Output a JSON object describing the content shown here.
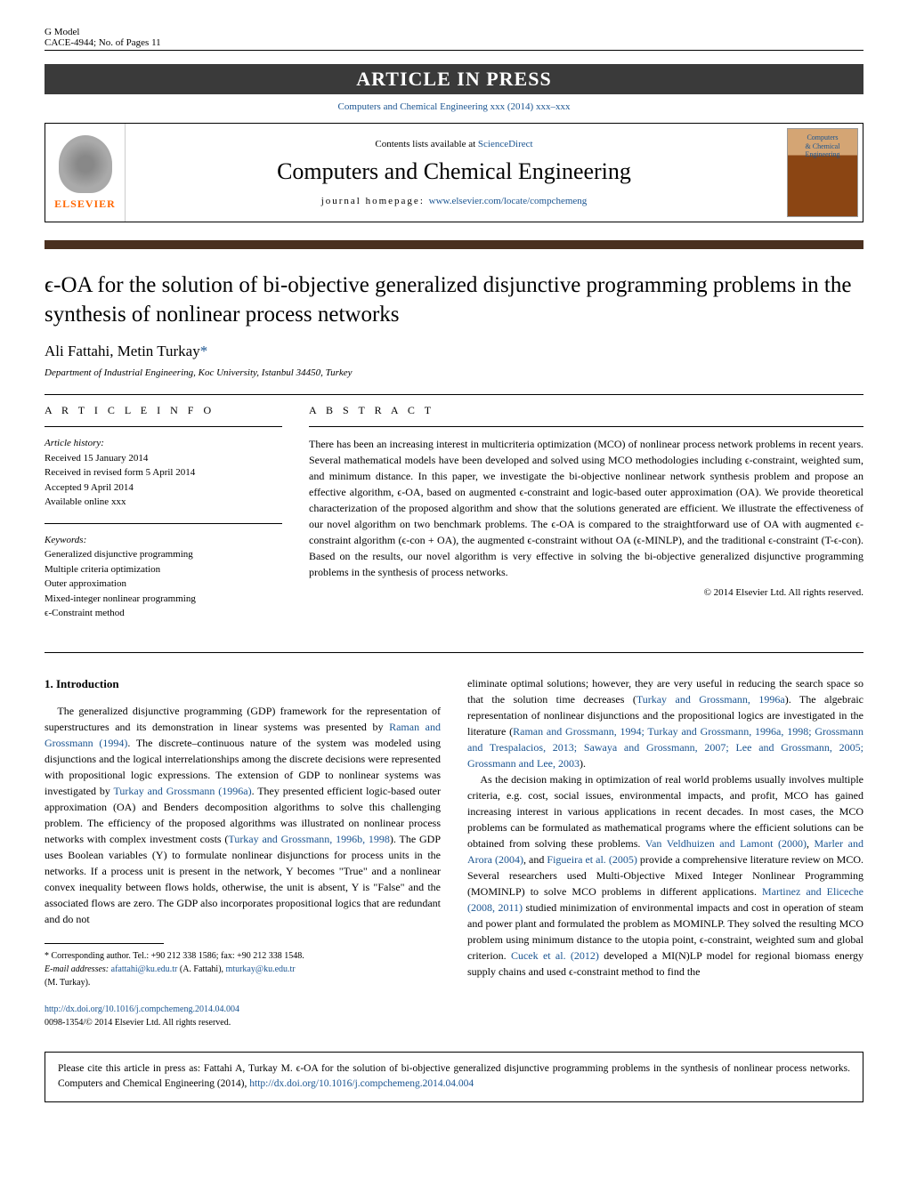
{
  "header": {
    "gmodel": "G Model",
    "cace": "CACE-4944;   No. of Pages 11",
    "banner": "ARTICLE IN PRESS",
    "journal_ref": "Computers and Chemical Engineering xxx (2014) xxx–xxx"
  },
  "journal_box": {
    "elsevier": "ELSEVIER",
    "contents": "Contents lists available at ",
    "sciencedirect": "ScienceDirect",
    "title": "Computers and Chemical Engineering",
    "homepage_label": "journal homepage: ",
    "homepage_url": "www.elsevier.com/locate/compchemeng",
    "cover_line1": "Computers",
    "cover_line2": "& Chemical",
    "cover_line3": "Engineering"
  },
  "article": {
    "title": "ϵ-OA for the solution of bi-objective generalized disjunctive programming problems in the synthesis of nonlinear process networks",
    "authors": "Ali Fattahi, Metin Turkay",
    "corr_mark": "*",
    "affiliation": "Department of Industrial Engineering, Koc University, Istanbul 34450, Turkey"
  },
  "info": {
    "heading": "A R T I C L E   I N F O",
    "history_label": "Article history:",
    "received": "Received 15 January 2014",
    "revised": "Received in revised form 5 April 2014",
    "accepted": "Accepted 9 April 2014",
    "online": "Available online xxx",
    "keywords_label": "Keywords:",
    "kw1": "Generalized disjunctive programming",
    "kw2": "Multiple criteria optimization",
    "kw3": "Outer approximation",
    "kw4": "Mixed-integer nonlinear programming",
    "kw5": "ϵ-Constraint method"
  },
  "abstract": {
    "heading": "A B S T R A C T",
    "text": "There has been an increasing interest in multicriteria optimization (MCO) of nonlinear process network problems in recent years. Several mathematical models have been developed and solved using MCO methodologies including ϵ-constraint, weighted sum, and minimum distance. In this paper, we investigate the bi-objective nonlinear network synthesis problem and propose an effective algorithm, ϵ-OA, based on augmented ϵ-constraint and logic-based outer approximation (OA). We provide theoretical characterization of the proposed algorithm and show that the solutions generated are efficient. We illustrate the effectiveness of our novel algorithm on two benchmark problems. The ϵ-OA is compared to the straightforward use of OA with augmented ϵ-constraint algorithm (ϵ-con + OA), the augmented ϵ-constraint without OA (ϵ-MINLP), and the traditional ϵ-constraint (T-ϵ-con). Based on the results, our novel algorithm is very effective in solving the bi-objective generalized disjunctive programming problems in the synthesis of process networks.",
    "copyright": "© 2014 Elsevier Ltd. All rights reserved."
  },
  "body": {
    "section1": "1.  Introduction",
    "col1_p1": "The generalized disjunctive programming (GDP) framework for the representation of superstructures and its demonstration in linear systems was presented by ",
    "col1_ref1": "Raman and Grossmann (1994)",
    "col1_p1b": ". The discrete–continuous nature of the system was modeled using disjunctions and the logical interrelationships among the discrete decisions were represented with propositional logic expressions. The extension of GDP to nonlinear systems was investigated by ",
    "col1_ref2": "Turkay and Grossmann (1996a)",
    "col1_p1c": ". They presented efficient logic-based outer approximation (OA) and Benders decomposition algorithms to solve this challenging problem. The efficiency of the proposed algorithms was illustrated on nonlinear process networks with complex investment costs (",
    "col1_ref3": "Turkay and Grossmann, 1996b, 1998",
    "col1_p1d": "). The GDP uses Boolean variables (Y) to formulate nonlinear disjunctions for process units in the networks. If a process unit is present in the network, Y becomes \"True\" and a nonlinear convex inequality between flows holds, otherwise, the unit is absent, Y is \"False\" and the associated flows are zero. The GDP also incorporates propositional logics that are redundant and do not",
    "col2_p1": "eliminate optimal solutions; however, they are very useful in reducing the search space so that the solution time decreases (",
    "col2_ref1": "Turkay and Grossmann, 1996a",
    "col2_p1b": "). The algebraic representation of nonlinear disjunctions and the propositional logics are investigated in the literature (",
    "col2_ref2": "Raman and Grossmann, 1994; Turkay and Grossmann, 1996a, 1998; Grossmann and Trespalacios, 2013; Sawaya and Grossmann, 2007; Lee and Grossmann, 2005; Grossmann and Lee, 2003",
    "col2_p1c": ").",
    "col2_p2": "As the decision making in optimization of real world problems usually involves multiple criteria, e.g. cost, social issues, environmental impacts, and profit, MCO has gained increasing interest in various applications in recent decades. In most cases, the MCO problems can be formulated as mathematical programs where the efficient solutions can be obtained from solving these problems. ",
    "col2_ref3": "Van Veldhuizen and Lamont (2000)",
    "col2_p2b": ", ",
    "col2_ref4": "Marler and Arora (2004)",
    "col2_p2c": ", and ",
    "col2_ref5": "Figueira et al. (2005)",
    "col2_p2d": " provide a comprehensive literature review on MCO. Several researchers used Multi-Objective Mixed Integer Nonlinear Programming (MOMINLP) to solve MCO problems in different applications. ",
    "col2_ref6": "Martinez and Eliceche (2008, 2011)",
    "col2_p2e": " studied minimization of environmental impacts and cost in operation of steam and power plant and formulated the problem as MOMINLP. They solved the resulting MCO problem using minimum distance to the utopia point, ϵ-constraint, weighted sum and global criterion. ",
    "col2_ref7": "Cucek et al. (2012)",
    "col2_p2f": " developed a MI(N)LP model for regional biomass energy supply chains and used ϵ-constraint method to find the"
  },
  "footnote": {
    "corr": "* Corresponding author. Tel.: +90 212 338 1586; fax: +90 212 338 1548.",
    "email_label": "E-mail addresses: ",
    "email1": "afattahi@ku.edu.tr",
    "email1_name": " (A. Fattahi), ",
    "email2": "mturkay@ku.edu.tr",
    "email2_name": "(M. Turkay)."
  },
  "doi": {
    "url": "http://dx.doi.org/10.1016/j.compchemeng.2014.04.004",
    "issn": "0098-1354/© 2014 Elsevier Ltd. All rights reserved."
  },
  "citebox": {
    "text1": "Please cite this article in press as: Fattahi A, Turkay M. ϵ-OA for the solution of bi-objective generalized disjunctive programming problems in the synthesis of nonlinear process networks. Computers and Chemical Engineering (2014), ",
    "url": "http://dx.doi.org/10.1016/j.compchemeng.2014.04.004"
  },
  "colors": {
    "link": "#1a5490",
    "banner_bg": "#3a3a3a",
    "brown_bar": "#4a3020",
    "elsevier_orange": "#ff6600"
  }
}
